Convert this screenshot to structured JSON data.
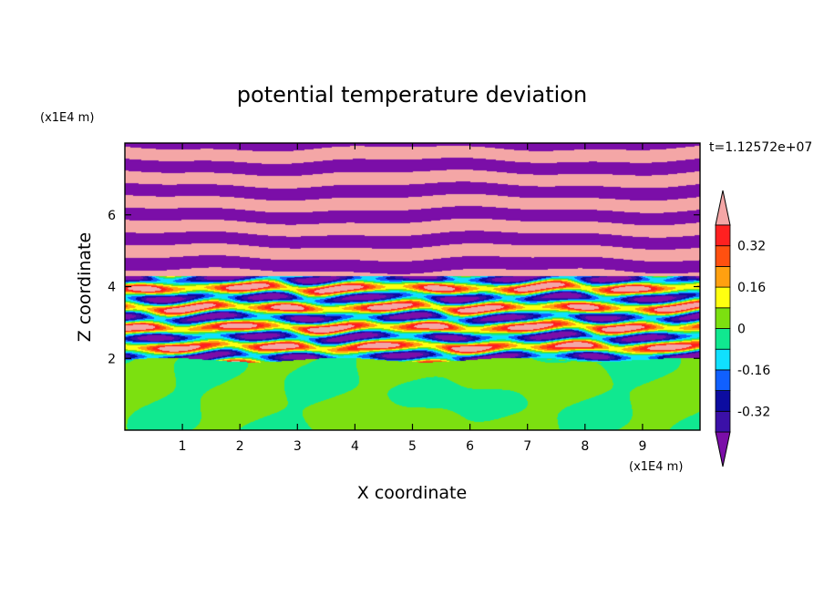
{
  "chart_data": {
    "type": "heatmap",
    "title": "potential temperature deviation",
    "xlabel": "X coordinate",
    "ylabel": "Z coordinate",
    "x_unit": "(x1E4 m)",
    "y_unit": "(x1E4 m)",
    "time_label": "t=1.12572e+07",
    "xlim": [
      0,
      10
    ],
    "ylim": [
      0,
      8
    ],
    "x_ticks": [
      "1",
      "2",
      "3",
      "4",
      "5",
      "6",
      "7",
      "8",
      "9"
    ],
    "y_ticks": [
      "2",
      "4",
      "6"
    ],
    "colorbar": {
      "labels": [
        "0.32",
        "0.16",
        "0",
        "-0.16",
        "-0.32"
      ],
      "label_values": [
        0.32,
        0.16,
        0,
        -0.16,
        -0.32
      ],
      "levels": [
        -0.4,
        -0.32,
        -0.24,
        -0.16,
        -0.08,
        0,
        0.08,
        0.16,
        0.24,
        0.32,
        0.4
      ],
      "under_color": "#7b0ea8",
      "over_color": "#f4a6a6",
      "band_colors": [
        "#3b10a8",
        "#0c0ca0",
        "#1060ff",
        "#10e0ff",
        "#10e890",
        "#7ce010",
        "#ffff10",
        "#ffa010",
        "#ff5010",
        "#ff2020"
      ]
    },
    "regions": [
      {
        "z_range": [
          0,
          1.95
        ],
        "description_value": "near-zero deviation, values between -0.08 and 0.08"
      },
      {
        "z_range": [
          1.95,
          4.3
        ],
        "description_value": "strongly mixed layer with values from -0.4 to 0.4"
      },
      {
        "z_range": [
          4.3,
          8
        ],
        "description_value": "alternating horizontal layers of values below -0.4 and above 0.4"
      }
    ]
  }
}
